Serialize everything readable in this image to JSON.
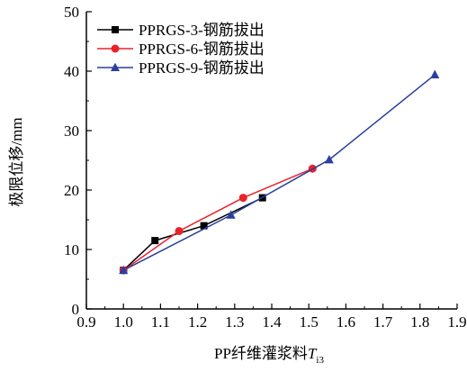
{
  "chart_data": {
    "type": "line",
    "xlabel": "PP纤维灌浆料",
    "xlabel_var": "T",
    "xlabel_sub": "i3",
    "ylabel": "极限位移/mm",
    "xlim": [
      0.9,
      1.9
    ],
    "ylim": [
      0,
      50
    ],
    "xticks": [
      "0.9",
      "1.0",
      "1.1",
      "1.2",
      "1.3",
      "1.4",
      "1.5",
      "1.6",
      "1.7",
      "1.8",
      "1.9"
    ],
    "yticks": [
      "0",
      "10",
      "20",
      "30",
      "40",
      "50"
    ],
    "legend_position": "top-left",
    "series": [
      {
        "name": "PPRGS-3-钢筋拔出",
        "color": "#000000",
        "marker": "square",
        "x": [
          1.0,
          1.085,
          1.217,
          1.375
        ],
        "y": [
          6.5,
          11.5,
          14.0,
          18.7
        ]
      },
      {
        "name": "PPRGS-6-钢筋拔出",
        "color": "#e8232a",
        "marker": "circle",
        "x": [
          1.0,
          1.15,
          1.323,
          1.51
        ],
        "y": [
          6.5,
          13.1,
          18.7,
          23.6
        ]
      },
      {
        "name": "PPRGS-9-钢筋拔出",
        "color": "#2a3f9e",
        "marker": "triangle",
        "x": [
          1.0,
          1.29,
          1.555,
          1.84
        ],
        "y": [
          6.5,
          15.8,
          25.1,
          39.4
        ]
      }
    ]
  }
}
